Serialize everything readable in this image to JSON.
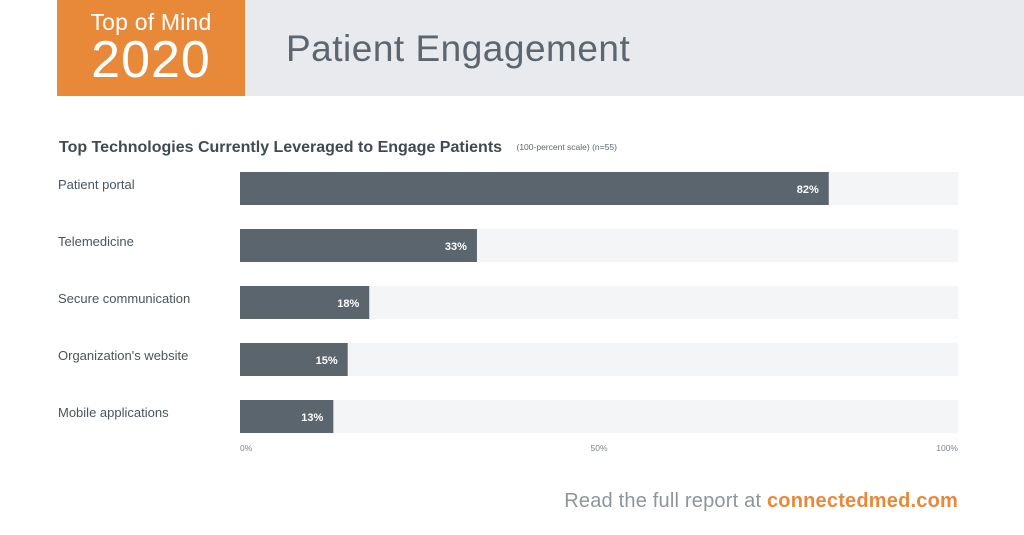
{
  "header": {
    "badge_top": "Top of Mind",
    "badge_year": "2020",
    "title": "Patient Engagement"
  },
  "footer": {
    "text": "Read the full report at ",
    "link": "connectedmed.com"
  },
  "colors": {
    "accent": "#e8893a",
    "bar": "#5b656e",
    "track": "#f4f5f6"
  },
  "chart_data": {
    "type": "bar",
    "orientation": "horizontal",
    "title": "Top Technologies Currently Leveraged to Engage Patients",
    "subtitle": "(100-percent scale) (n=55)",
    "categories": [
      "Patient portal",
      "Telemedicine",
      "Secure communication",
      "Organization's website",
      "Mobile applications"
    ],
    "values": [
      82,
      33,
      18,
      15,
      13
    ],
    "value_labels": [
      "82%",
      "33%",
      "18%",
      "15%",
      "13%"
    ],
    "xlim": [
      0,
      100
    ],
    "ticks": [
      0,
      50,
      100
    ],
    "tick_labels": [
      "0%",
      "50%",
      "100%"
    ],
    "grid": false,
    "legend": "none"
  }
}
